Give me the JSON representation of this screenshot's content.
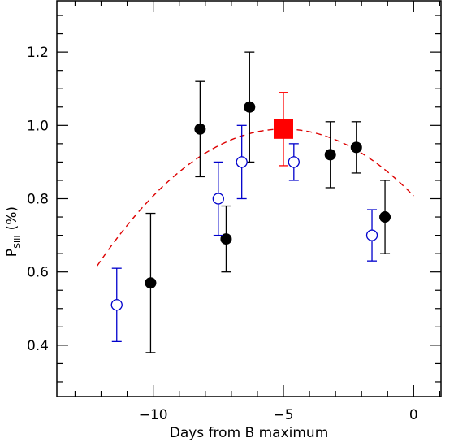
{
  "chart_data": {
    "type": "scatter",
    "xlabel": "Days from B maximum",
    "ylabel_main": "P",
    "ylabel_sub": "SiII",
    "ylabel_unit": "(%)",
    "xlim": [
      -13.7,
      1.05
    ],
    "ylim": [
      0.26,
      1.34
    ],
    "x_ticks": [
      -10,
      -5,
      0
    ],
    "x_tick_labels": [
      "−10",
      "−5",
      "0"
    ],
    "x_minor_step": 1,
    "y_ticks": [
      0.4,
      0.6,
      0.8,
      1.0,
      1.2
    ],
    "y_tick_labels": [
      "0.4",
      "0.6",
      "0.8",
      "1.0",
      "1.2"
    ],
    "y_minor_step": 0.05,
    "grid": false,
    "series": [
      {
        "marker": "filled-circle",
        "color": "#000000",
        "points": [
          {
            "x": -10.1,
            "y": 0.57,
            "err": 0.19
          },
          {
            "x": -8.2,
            "y": 0.99,
            "err": 0.13
          },
          {
            "x": -7.2,
            "y": 0.69,
            "err": 0.09
          },
          {
            "x": -6.3,
            "y": 1.05,
            "err": 0.15
          },
          {
            "x": -3.2,
            "y": 0.92,
            "err": 0.09
          },
          {
            "x": -2.2,
            "y": 0.94,
            "err": 0.07
          },
          {
            "x": -1.1,
            "y": 0.75,
            "err": 0.1
          }
        ]
      },
      {
        "marker": "open-circle",
        "color": "#0000cc",
        "points": [
          {
            "x": -11.4,
            "y": 0.51,
            "err": 0.1
          },
          {
            "x": -7.5,
            "y": 0.8,
            "err": 0.1
          },
          {
            "x": -6.6,
            "y": 0.9,
            "err": 0.1
          },
          {
            "x": -4.6,
            "y": 0.9,
            "err": 0.05
          },
          {
            "x": -1.6,
            "y": 0.7,
            "err": 0.07
          }
        ]
      },
      {
        "marker": "filled-square",
        "color": "#ff0000",
        "points": [
          {
            "x": -5.0,
            "y": 0.99,
            "err": 0.1
          }
        ]
      }
    ],
    "fit": {
      "style": "dashed",
      "color": "#dd0000",
      "form": "quadratic",
      "vertex_x": -5.0,
      "vertex_y": 0.99,
      "a": 0.0073,
      "x_range": [
        -12.15,
        0.0
      ]
    }
  }
}
